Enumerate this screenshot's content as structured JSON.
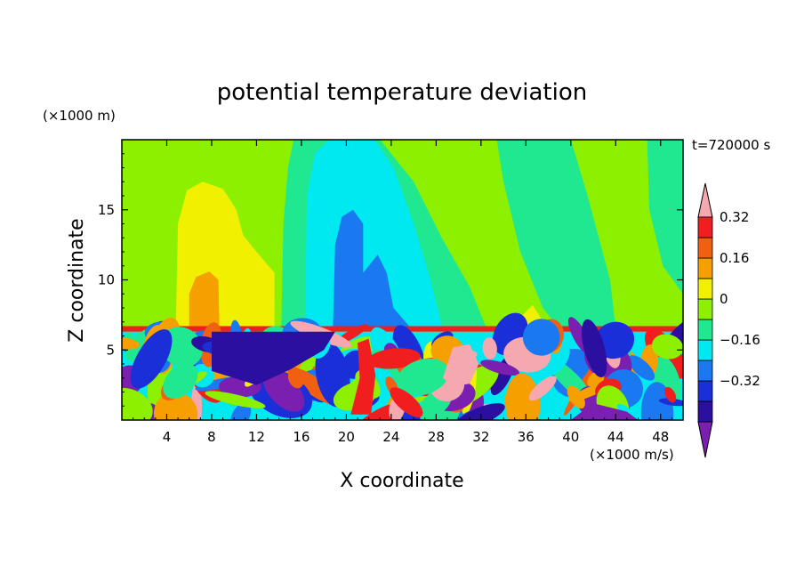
{
  "chart_data": {
    "type": "heatmap",
    "title": "potential temperature deviation",
    "xlabel": "X coordinate",
    "ylabel": "Z coordinate",
    "x_unit": "(×1000 m/s)",
    "y_unit": "(×1000 m)",
    "time_label": "t=720000 s",
    "xlim": [
      0,
      50
    ],
    "ylim": [
      0,
      20
    ],
    "x_ticks": [
      4,
      8,
      12,
      16,
      20,
      24,
      28,
      32,
      36,
      40,
      44,
      48
    ],
    "y_ticks": [
      5,
      10,
      15
    ],
    "colorbar": {
      "levels": [
        -0.48,
        -0.4,
        -0.32,
        -0.24,
        -0.16,
        -0.08,
        0,
        0.08,
        0.16,
        0.24,
        0.32,
        0.4
      ],
      "labels": [
        "-0.32",
        "-0.16",
        "0",
        "0.16",
        "0.32"
      ],
      "label_values": [
        -0.32,
        -0.16,
        0,
        0.16,
        0.32
      ],
      "extend": "both",
      "colors": [
        "#7a1fb0",
        "#2a0fa0",
        "#1a2fd8",
        "#1a78f0",
        "#00e8f0",
        "#20e890",
        "#8cf000",
        "#f0f000",
        "#f5a000",
        "#f06010",
        "#f01e1e",
        "#f5a8b0"
      ]
    },
    "background_field_value": 0.04
  }
}
